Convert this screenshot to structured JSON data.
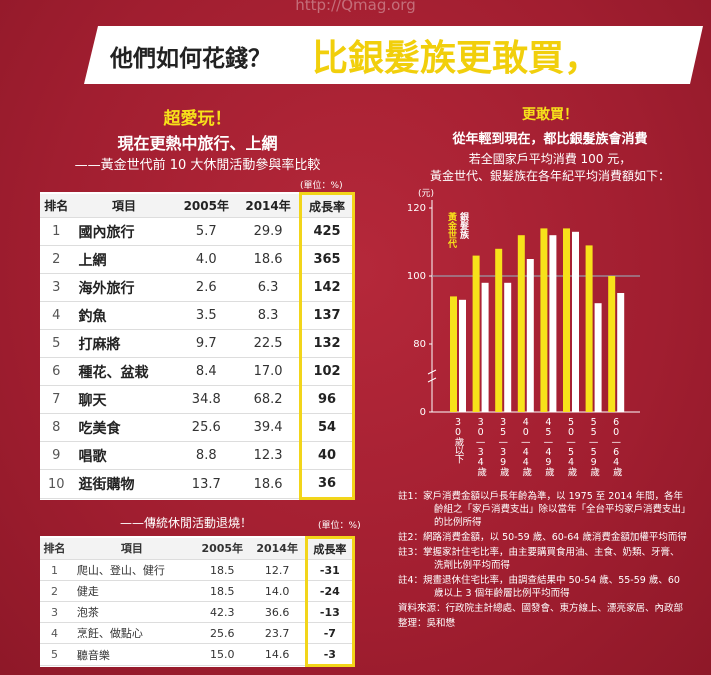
{
  "watermark": "http://Qmag.org",
  "header": {
    "title_part1": "他們如何花錢？",
    "title_part2": "比銀髮族更敢買，"
  },
  "left": {
    "kicker": "超愛玩！",
    "headline": "現在更熱中旅行、上網",
    "subhead": "——黃金世代前 10 大休閒活動參與率比較",
    "table1": {
      "unit": "(單位：%)",
      "columns": [
        "排名",
        "項目",
        "2005年",
        "2014年",
        "成長率"
      ],
      "rows": [
        [
          "1",
          "國內旅行",
          "5.7",
          "29.9",
          "425"
        ],
        [
          "2",
          "上網",
          "4.0",
          "18.6",
          "365"
        ],
        [
          "3",
          "海外旅行",
          "2.6",
          "6.3",
          "142"
        ],
        [
          "4",
          "釣魚",
          "3.5",
          "8.3",
          "137"
        ],
        [
          "5",
          "打麻將",
          "9.7",
          "22.5",
          "132"
        ],
        [
          "6",
          "種花、盆栽",
          "8.4",
          "17.0",
          "102"
        ],
        [
          "7",
          "聊天",
          "34.8",
          "68.2",
          "96"
        ],
        [
          "8",
          "吃美食",
          "25.6",
          "39.4",
          "54"
        ],
        [
          "9",
          "唱歌",
          "8.8",
          "12.3",
          "40"
        ],
        [
          "10",
          "逛街購物",
          "13.7",
          "18.6",
          "36"
        ]
      ]
    },
    "subhead2": "——傳統休閒活動退燒！",
    "table2": {
      "unit": "(單位：%)",
      "columns": [
        "排名",
        "項目",
        "2005年",
        "2014年",
        "成長率"
      ],
      "rows": [
        [
          "1",
          "爬山、登山、健行",
          "18.5",
          "12.7",
          "-31"
        ],
        [
          "2",
          "健走",
          "18.5",
          "14.0",
          "-24"
        ],
        [
          "3",
          "泡茶",
          "42.3",
          "36.6",
          "-13"
        ],
        [
          "4",
          "烹飪、做點心",
          "25.6",
          "23.7",
          "-7"
        ],
        [
          "5",
          "聽音樂",
          "15.0",
          "14.6",
          "-3"
        ]
      ]
    }
  },
  "right": {
    "kicker": "更敢買！",
    "headline": "從年輕到現在，都比銀髮族會消費",
    "subhead1": "若全國家戶平均消費 100 元，",
    "subhead2": "黃金世代、銀髮族在各年紀平均消費額如下：",
    "notes": [
      "註1：家戶消費金額以戶長年齡為準，以 1975 至 2014 年間，各年齡組之「家戶消費支出」除以當年「全台平均家戶消費支出」的比例所得",
      "註2：網路消費金額，以 50-59 歲、60-64 歲消費金額加權平均而得",
      "註3：掌握家計住宅比率，由主要購買食用油、主食、奶類、牙膏、洗劑比例平均而得",
      "註4：規畫退休住宅比率，由調查結果中 50-54 歲、55-59 歲、60 歲以上 3 個年齡層比例平均而得",
      "資料來源：行政院主計總處、國發會、東方線上、漂亮家居、內政部",
      "整理：吳和懋"
    ]
  },
  "chart_data": {
    "type": "bar",
    "y_unit": "(元)",
    "categories": [
      "30歲以下",
      "30—34歲",
      "35—39歲",
      "40—44歲",
      "45—49歲",
      "50—54歲",
      "55—59歲",
      "60—64歲"
    ],
    "series": [
      {
        "name": "黃金世代",
        "color": "#f7e21a",
        "values": [
          94,
          106,
          108,
          112,
          114,
          114,
          109,
          100
        ]
      },
      {
        "name": "銀髮族",
        "color": "#ffffff",
        "values": [
          93,
          98,
          98,
          105,
          112,
          113,
          92,
          95
        ]
      }
    ],
    "ylim": [
      60,
      120
    ],
    "yticks": [
      {
        "value": 60,
        "label": "0"
      },
      80,
      100,
      120
    ],
    "reference_line": 100
  }
}
